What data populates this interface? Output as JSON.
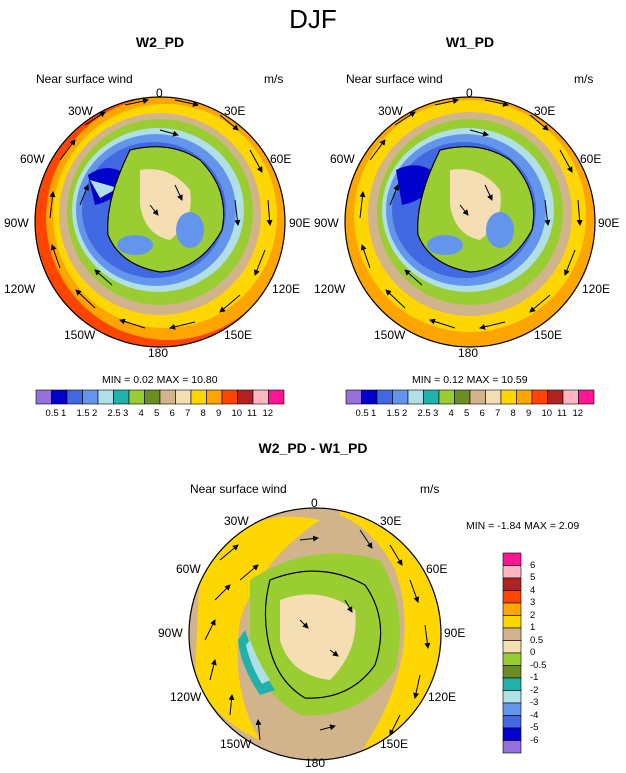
{
  "figure_title": "DJF",
  "panels": [
    {
      "title": "W2_PD",
      "subtitle": "Near surface wind",
      "units": "m/s",
      "minmax": "MIN =  0.02 MAX =  10.80",
      "lon_labels": {
        "l0": "0",
        "l30e": "30E",
        "l60e": "60E",
        "l90e": "90E",
        "l120e": "120E",
        "l150e": "150E",
        "l180": "180",
        "l150w": "150W",
        "l120w": "120W",
        "l90w": "90W",
        "l60w": "60W",
        "l30w": "30W"
      }
    },
    {
      "title": "W1_PD",
      "subtitle": "Near surface wind",
      "units": "m/s",
      "minmax": "MIN =  0.12 MAX =  10.59",
      "lon_labels": {
        "l0": "0",
        "l30e": "30E",
        "l60e": "60E",
        "l90e": "90E",
        "l120e": "120E",
        "l150e": "150E",
        "l180": "180",
        "l150w": "150W",
        "l120w": "120W",
        "l90w": "90W",
        "l60w": "60W",
        "l30w": "30W"
      }
    },
    {
      "title": "W2_PD - W1_PD",
      "subtitle": "Near surface wind",
      "units": "m/s",
      "minmax": "MIN = -1.84 MAX =  2.09",
      "lon_labels": {
        "l0": "0",
        "l30e": "30E",
        "l60e": "60E",
        "l90e": "90E",
        "l120e": "120E",
        "l150e": "150E",
        "l180": "180",
        "l150w": "150W",
        "l120w": "120W",
        "l90w": "90W",
        "l60w": "60W",
        "l30w": "30W"
      }
    }
  ],
  "wind_colorbar": {
    "labels": [
      "0.5",
      "1",
      "1.5",
      "2",
      "2.5",
      "3",
      "4",
      "5",
      "6",
      "7",
      "8",
      "9",
      "10",
      "11",
      "12"
    ],
    "colors": [
      "#9370db",
      "#0000cd",
      "#4169e1",
      "#6495ed",
      "#b0e0e6",
      "#20b2aa",
      "#9acd32",
      "#6b8e23",
      "#d2b48c",
      "#f5deb3",
      "#ffd700",
      "#ffa500",
      "#ff4500",
      "#b22222",
      "#ffb6c1",
      "#ff1493"
    ]
  },
  "diff_colorbar": {
    "labels": [
      "6",
      "5",
      "4",
      "3",
      "2",
      "1",
      "0.5",
      "0",
      "-0.5",
      "-1",
      "-2",
      "-3",
      "-4",
      "-5",
      "-6"
    ],
    "colors": [
      "#ff1493",
      "#ffb6c1",
      "#b22222",
      "#ff4500",
      "#ffa500",
      "#ffd700",
      "#d2b48c",
      "#f5deb3",
      "#9acd32",
      "#6b8e23",
      "#20b2aa",
      "#b0e0e6",
      "#6495ed",
      "#4169e1",
      "#0000cd",
      "#9370db"
    ]
  }
}
